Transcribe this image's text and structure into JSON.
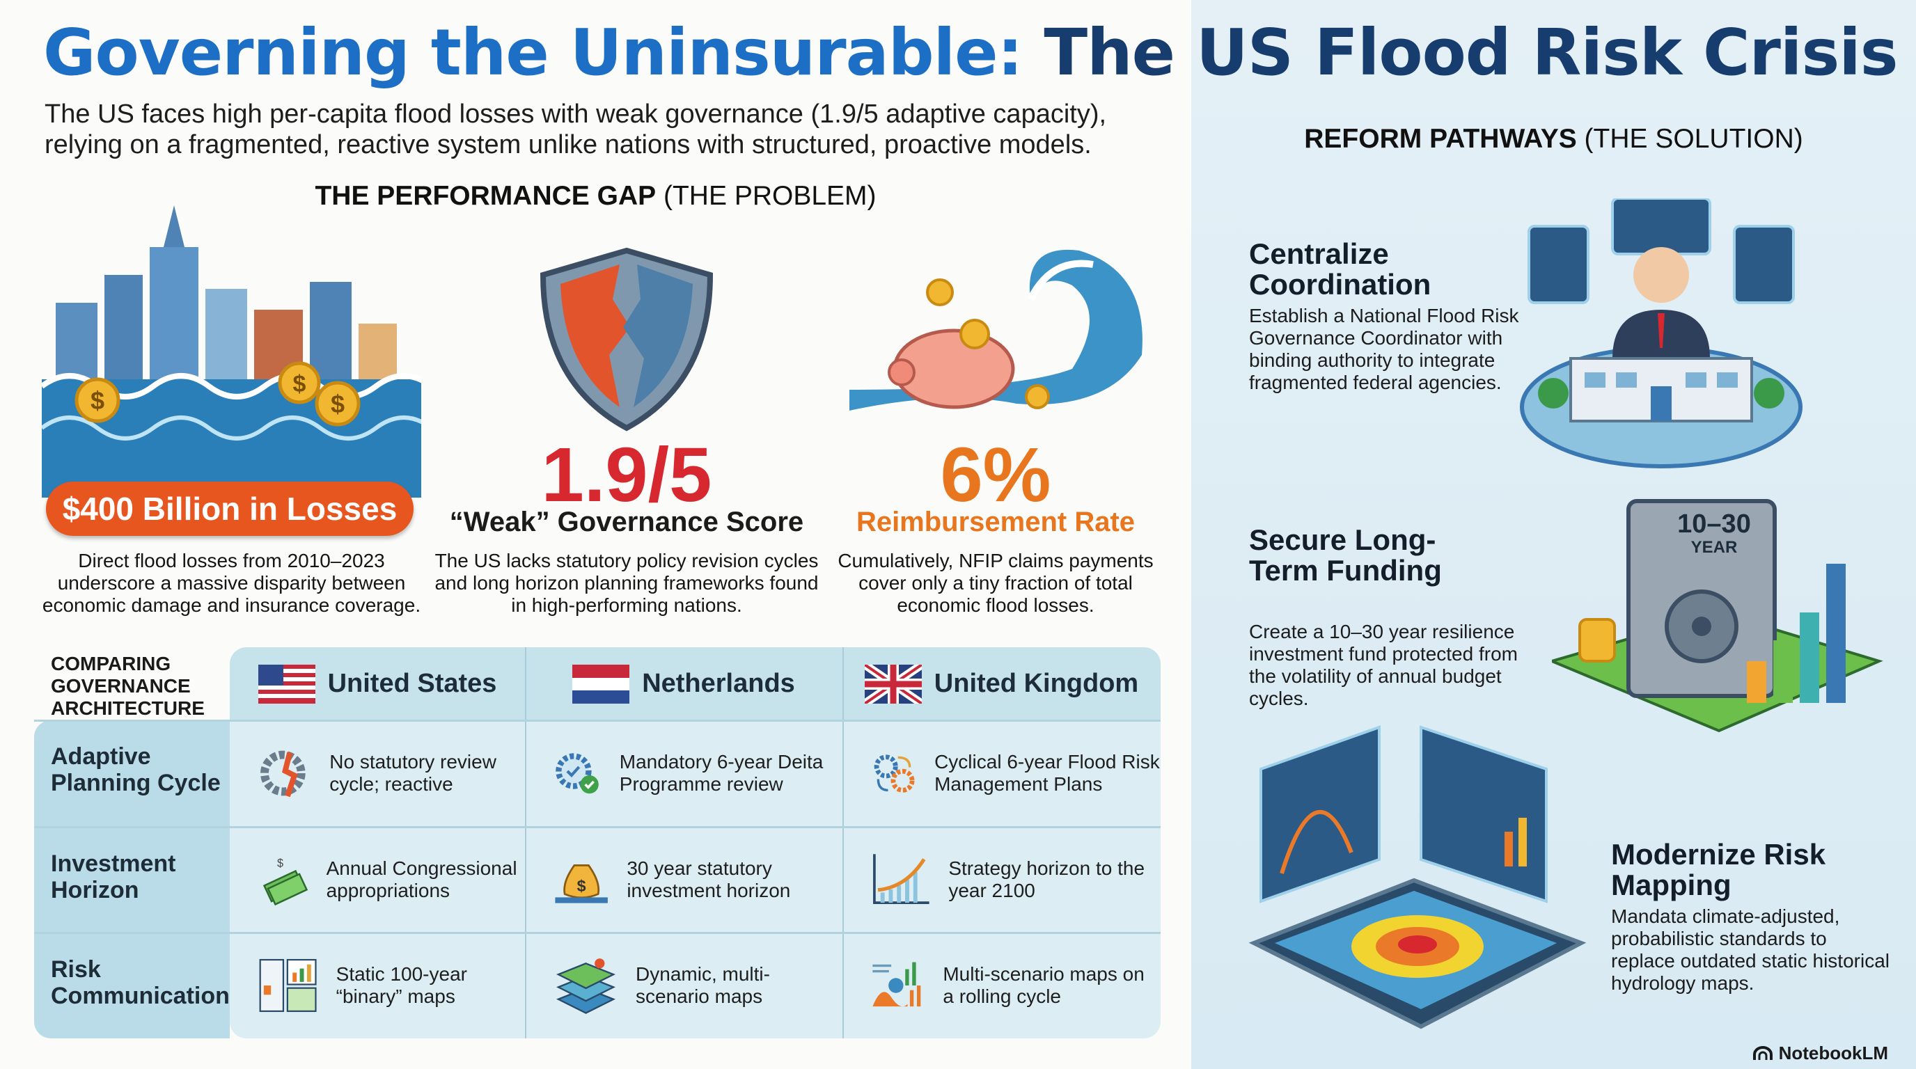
{
  "title": {
    "part1": "Governing the Uninsurable:",
    "part2": "The US Flood Risk Crisis"
  },
  "subtitle": "The US faces high per-capita flood losses with weak governance (1.9/5 adaptive capacity), relying on a fragmented, reactive system unlike nations with structured, proactive models.",
  "performance_gap": {
    "heading_bold": "THE PERFORMANCE GAP",
    "heading_rest": " (THE PROBLEM)"
  },
  "stats": [
    {
      "value": "$400 Billion in Losses",
      "description": "Direct flood losses from 2010–2023 underscore a massive disparity between economic damage and insurance coverage."
    },
    {
      "value": "1.9/5",
      "label": "“Weak” Governance Score",
      "description": "The US lacks statutory policy revision cycles and long horizon planning frameworks found in high-performing nations."
    },
    {
      "value": "6%",
      "label": "Reimbursement Rate",
      "description": "Cumulatively, NFIP claims payments cover only a tiny fraction of total economic flood losses."
    }
  ],
  "comparison": {
    "title": "COMPARING GOVERNANCE ARCHITECTURE",
    "columns": [
      "United States",
      "Netherlands",
      "United Kingdom"
    ],
    "rows": [
      {
        "label": "Adaptive Planning Cycle",
        "cells": [
          "No statutory review cycle; reactive",
          "Mandatory 6-year Deita Programme review",
          "Cyclical 6-year Flood Risk Management Plans"
        ]
      },
      {
        "label": "Investment Horizon",
        "cells": [
          "Annual Congressional appropriations",
          "30 year statutory investment horizon",
          "Strategy horizon to the year 2100"
        ]
      },
      {
        "label": "Risk Communication",
        "cells": [
          "Static 100-year “binary” maps",
          "Dynamic, multi-scenario maps",
          "Multi-scenario maps on a rolling cycle"
        ]
      }
    ]
  },
  "reform": {
    "heading_bold": "REFORM PATHWAYS",
    "heading_rest": " (THE SOLUTION)",
    "items": [
      {
        "title": "Centralize Coordination",
        "description": "Establish a National Flood Risk Governance Coordinator with binding authority to integrate fragmented federal agencies."
      },
      {
        "title": "Secure Long-Term Funding",
        "description": "Create a 10–30 year resilience investment fund protected from the volatility of annual budget cycles.",
        "badge_main": "10–30",
        "badge_sub": "YEAR"
      },
      {
        "title": "Modernize Risk Mapping",
        "description": "Mandata climate-adjusted, probabilistic standards to replace outdated static historical hydrology maps."
      }
    ]
  },
  "footer": {
    "brand": "NotebookLM"
  },
  "colors": {
    "title_blue": "#1c6fc4",
    "title_navy": "#163d6e",
    "red": "#d7282f",
    "orange": "#e8761f",
    "pill": "#e8561f"
  }
}
